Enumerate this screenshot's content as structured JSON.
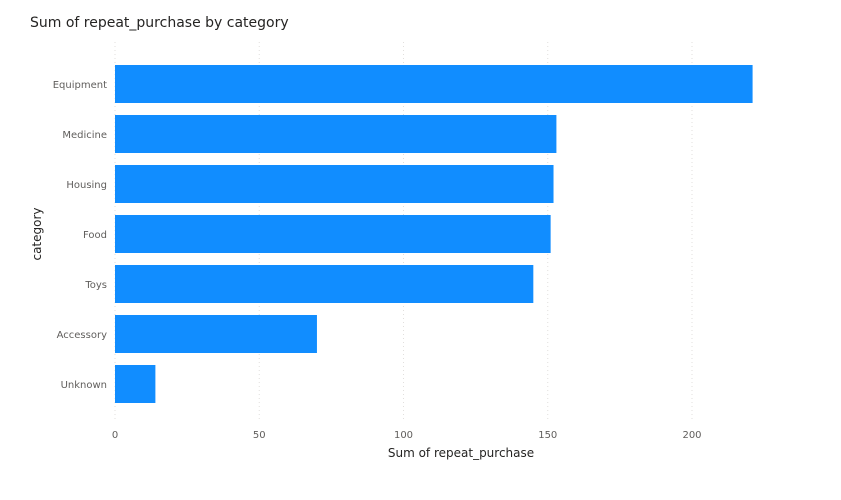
{
  "chart_data": {
    "type": "bar",
    "orientation": "horizontal",
    "title": "Sum of repeat_purchase by category",
    "xlabel": "Sum of repeat_purchase",
    "ylabel": "category",
    "categories": [
      "Equipment",
      "Medicine",
      "Housing",
      "Food",
      "Toys",
      "Accessory",
      "Unknown"
    ],
    "values": [
      221,
      153,
      152,
      151,
      145,
      70,
      14
    ],
    "xlim": [
      0,
      240
    ],
    "xticks": [
      0,
      50,
      100,
      150,
      200
    ],
    "grid": "vertical-dotted",
    "bar_color": "#118DFF"
  }
}
